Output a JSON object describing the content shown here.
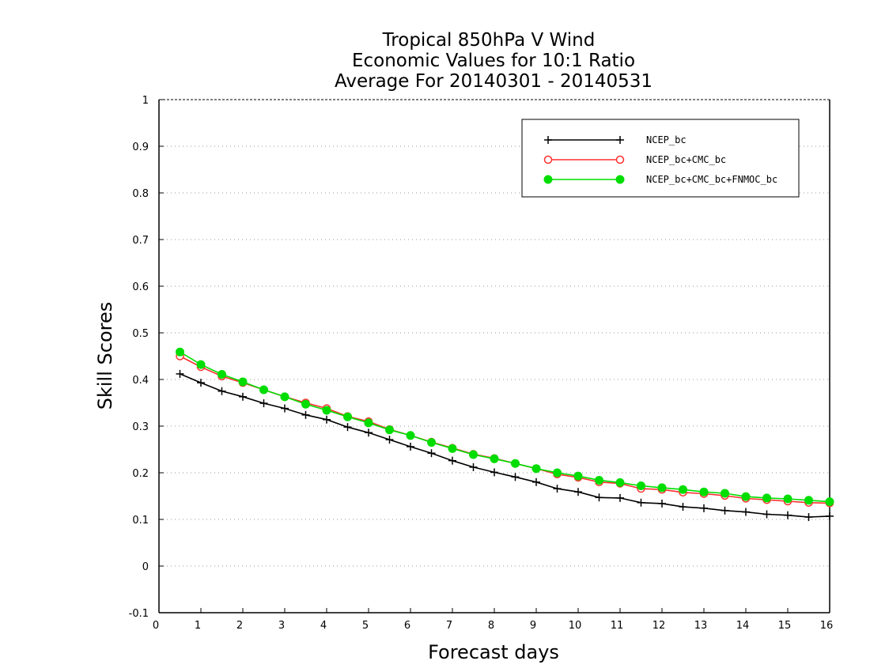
{
  "chart_data": {
    "type": "line",
    "title_lines": [
      "Tropical 850hPa V Wind",
      "Economic Values for 10:1 Ratio",
      "Average For 20140301 - 20140531"
    ],
    "xlabel": "Forecast days",
    "ylabel": "Skill Scores",
    "xlim": [
      0,
      16
    ],
    "ylim": [
      -0.1,
      1
    ],
    "xticks": [
      0,
      1,
      2,
      3,
      4,
      5,
      6,
      7,
      8,
      9,
      10,
      11,
      12,
      13,
      14,
      15,
      16
    ],
    "yticks": [
      -0.1,
      0,
      0.1,
      0.2,
      0.3,
      0.4,
      0.5,
      0.6,
      0.7,
      0.8,
      0.9,
      1
    ],
    "ytick_labels": [
      "-0.1",
      "0",
      "0.1",
      "0.2",
      "0.3",
      "0.4",
      "0.5",
      "0.6",
      "0.7",
      "0.8",
      "0.9",
      "1"
    ],
    "grid": "horizontal dotted",
    "legend_position": "top-right",
    "x": [
      0.5,
      1,
      1.5,
      2,
      2.5,
      3,
      3.5,
      4,
      4.5,
      5,
      5.5,
      6,
      6.5,
      7,
      7.5,
      8,
      8.5,
      9,
      9.5,
      10,
      10.5,
      11,
      11.5,
      12,
      12.5,
      13,
      13.5,
      14,
      14.5,
      15,
      15.5,
      16
    ],
    "series": [
      {
        "name": "NCEP_bc",
        "color": "#000000",
        "marker": "plus",
        "values": [
          0.412,
          0.393,
          0.375,
          0.363,
          0.349,
          0.338,
          0.324,
          0.314,
          0.298,
          0.286,
          0.271,
          0.256,
          0.242,
          0.226,
          0.212,
          0.201,
          0.191,
          0.18,
          0.166,
          0.159,
          0.147,
          0.146,
          0.136,
          0.134,
          0.127,
          0.124,
          0.119,
          0.116,
          0.111,
          0.109,
          0.105,
          0.107
        ]
      },
      {
        "name": "NCEP_bc+CMC_bc",
        "color": "#ff3030",
        "marker": "open-circle",
        "values": [
          0.45,
          0.427,
          0.407,
          0.393,
          0.378,
          0.363,
          0.35,
          0.338,
          0.321,
          0.31,
          0.293,
          0.28,
          0.266,
          0.253,
          0.24,
          0.231,
          0.22,
          0.209,
          0.197,
          0.19,
          0.18,
          0.177,
          0.166,
          0.164,
          0.158,
          0.155,
          0.151,
          0.145,
          0.142,
          0.139,
          0.136,
          0.135
        ]
      },
      {
        "name": "NCEP_bc+CMC_bc+FNMOC_bc",
        "color": "#00dd00",
        "marker": "filled-circle",
        "values": [
          0.459,
          0.432,
          0.411,
          0.395,
          0.378,
          0.363,
          0.347,
          0.334,
          0.32,
          0.307,
          0.292,
          0.28,
          0.265,
          0.252,
          0.239,
          0.23,
          0.22,
          0.209,
          0.2,
          0.193,
          0.184,
          0.179,
          0.172,
          0.168,
          0.164,
          0.159,
          0.156,
          0.149,
          0.146,
          0.144,
          0.141,
          0.138
        ]
      }
    ]
  }
}
